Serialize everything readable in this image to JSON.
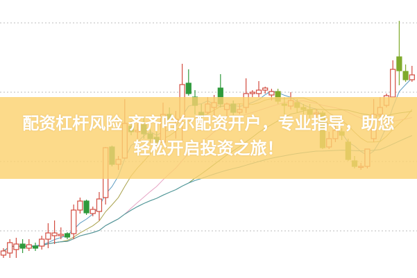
{
  "banner": {
    "line1": "配资杠杆风险 齐齐哈尔配资开户，专业指导，助您",
    "line2": "轻松开启投资之旅！"
  },
  "chart_data": {
    "type": "candlestick",
    "title": "",
    "xlabel": "",
    "ylabel": "",
    "grid": true,
    "grid_style": "dotted horizontal",
    "grid_levels": [
      10,
      20,
      30,
      40
    ],
    "ylim": [
      0,
      43.3
    ],
    "colors": {
      "up": "#d24a3e",
      "down_early": "#2f9a3c",
      "down_late": "#7faa2c",
      "grid": "#bbbbbb"
    },
    "moving_averages": [
      {
        "period": 5,
        "color": "#5b9bc0"
      },
      {
        "period": 10,
        "color": "#a9a24c"
      },
      {
        "period": 20,
        "color": "#e6a3c4"
      },
      {
        "period": 30,
        "color": "#6f9440"
      },
      {
        "period": 60,
        "color": "#4e98a6"
      }
    ],
    "candles_ochl": [
      [
        6.5,
        7.1,
        7.5,
        6.1
      ],
      [
        6.8,
        8.3,
        8.8,
        6.1
      ],
      [
        7.3,
        8.1,
        9.0,
        6.1
      ],
      [
        8.1,
        7.5,
        8.8,
        6.8
      ],
      [
        7.5,
        8.0,
        8.8,
        7.1
      ],
      [
        7.8,
        7.5,
        8.3,
        7.1
      ],
      [
        7.8,
        8.8,
        9.3,
        7.3
      ],
      [
        8.8,
        9.7,
        11.1,
        7.5
      ],
      [
        9.3,
        9.7,
        11.5,
        8.1
      ],
      [
        9.3,
        9.5,
        10.5,
        8.8
      ],
      [
        9.6,
        9.1,
        9.8,
        8.8
      ],
      [
        9.6,
        13.0,
        13.8,
        8.8
      ],
      [
        13.0,
        14.3,
        14.8,
        12.5
      ],
      [
        14.3,
        12.6,
        14.5,
        12.3
      ],
      [
        12.5,
        13.1,
        13.5,
        12.1
      ],
      [
        12.8,
        14.6,
        15.6,
        11.5
      ],
      [
        14.8,
        22.0,
        22.1,
        13.8
      ],
      [
        22.1,
        19.6,
        22.3,
        19.3
      ],
      [
        19.6,
        20.3,
        20.8,
        18.8
      ],
      [
        20.5,
        25.5,
        29.0,
        20.5
      ],
      [
        25.1,
        24.3,
        25.8,
        23.8
      ],
      [
        24.3,
        24.5,
        25.5,
        23.3
      ],
      [
        25.3,
        24.0,
        26.3,
        23.3
      ],
      [
        24.0,
        23.3,
        24.6,
        22.7
      ],
      [
        23.5,
        22.8,
        24.3,
        22.3
      ],
      [
        22.8,
        26.8,
        28.5,
        22.8
      ],
      [
        26.8,
        26.1,
        27.8,
        25.8
      ],
      [
        25.8,
        26.1,
        27.3,
        23.3
      ],
      [
        26.3,
        31.1,
        34.1,
        22.8
      ],
      [
        31.3,
        29.8,
        33.3,
        29.5
      ],
      [
        29.3,
        28.1,
        30.3,
        26.8
      ],
      [
        27.1,
        26.5,
        28.3,
        26.1
      ],
      [
        27.1,
        28.3,
        29.3,
        26.8
      ],
      [
        27.8,
        28.5,
        29.6,
        26.5
      ],
      [
        30.6,
        28.3,
        32.6,
        27.8
      ],
      [
        27.5,
        28.3,
        28.5,
        26.5
      ],
      [
        28.3,
        27.1,
        28.8,
        26.7
      ],
      [
        27.1,
        27.5,
        28.3,
        26.8
      ],
      [
        27.8,
        29.8,
        32.0,
        27.0
      ],
      [
        29.8,
        30.0,
        30.3,
        29.3
      ],
      [
        29.8,
        30.3,
        31.6,
        29.3
      ],
      [
        30.3,
        30.6,
        30.8,
        29.8
      ],
      [
        29.6,
        30.1,
        30.5,
        28.8
      ],
      [
        30.1,
        28.7,
        30.5,
        28.3
      ],
      [
        28.3,
        28.1,
        29.3,
        26.8
      ],
      [
        28.0,
        28.8,
        30.0,
        27.5
      ],
      [
        28.5,
        27.8,
        29.0,
        27.1
      ],
      [
        27.8,
        27.5,
        28.3,
        26.8
      ],
      [
        27.5,
        26.8,
        28.3,
        26.3
      ],
      [
        26.8,
        27.0,
        27.6,
        26.3
      ],
      [
        27.0,
        22.0,
        27.3,
        21.8
      ],
      [
        22.1,
        23.3,
        24.3,
        21.8
      ],
      [
        23.3,
        24.5,
        25.3,
        22.8
      ],
      [
        24.3,
        23.8,
        24.8,
        23.1
      ],
      [
        22.8,
        20.3,
        23.3,
        20.1
      ],
      [
        20.1,
        19.3,
        20.8,
        19.0
      ],
      [
        19.3,
        19.3,
        19.8,
        18.8
      ],
      [
        19.3,
        21.8,
        21.8,
        19.0
      ],
      [
        23.3,
        26.8,
        29.0,
        22.8
      ],
      [
        26.8,
        27.8,
        29.3,
        26.3
      ],
      [
        28.1,
        29.5,
        29.8,
        27.8
      ],
      [
        29.3,
        33.3,
        34.6,
        29.3
      ],
      [
        35.1,
        33.1,
        40.3,
        31.0
      ],
      [
        33.0,
        31.8,
        34.0,
        31.5
      ],
      [
        31.8,
        32.5,
        33.8,
        31.5
      ]
    ]
  }
}
